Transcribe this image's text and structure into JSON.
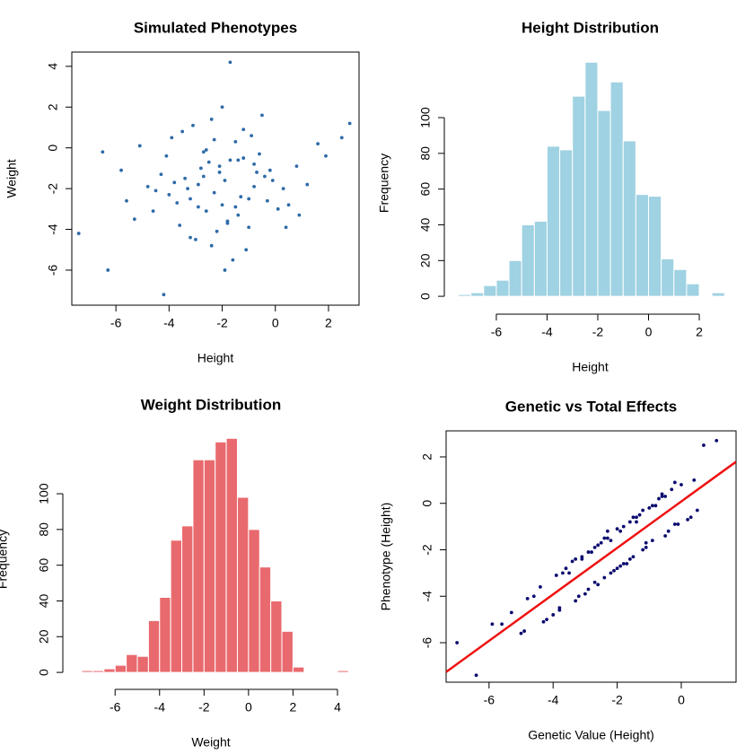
{
  "chart_data": [
    {
      "type": "scatter",
      "title": "Simulated Phenotypes",
      "x_label": "Height",
      "y_label": "Weight",
      "color": "#2f6aa8",
      "x": [
        -2.1,
        -1.5,
        -3.2,
        -0.8,
        -2.6,
        -1.9,
        -4.1,
        0.3,
        -2.8,
        -1.2,
        -3.6,
        -0.4,
        -2.3,
        -5.1,
        -1.7,
        1.2,
        -3.0,
        -2.0,
        -0.9,
        -4.5,
        -1.4,
        -2.7,
        0.8,
        -3.4,
        -1.1,
        -2.4,
        -5.6,
        -0.2,
        -1.8,
        -3.9,
        -2.9,
        -0.6,
        1.6,
        -2.2,
        -4.8,
        -1.3,
        -3.1,
        0.1,
        -2.5,
        -1.6,
        -6.5,
        -0.7,
        -3.7,
        -2.0,
        -1.0,
        -4.3,
        0.5,
        -2.6,
        -1.9,
        -3.3,
        2.8,
        -7.4,
        -1.7,
        -4.2,
        -6.3,
        2.5,
        -0.3,
        -2.4,
        -3.8,
        -1.2,
        -5.3,
        -0.5,
        -2.9,
        0.9,
        -1.5,
        -4.0,
        -2.1,
        -3.5,
        -0.1,
        -1.8,
        1.9,
        -2.7,
        -4.6,
        -1.0,
        -3.2,
        -0.8,
        -2.3,
        -5.8,
        0.4,
        -1.4
      ],
      "values": [
        -1.2,
        0.3,
        -2.5,
        -0.8,
        -3.1,
        -1.6,
        -0.4,
        -2.0,
        -1.0,
        0.9,
        -3.8,
        -1.4,
        -2.2,
        0.1,
        -0.6,
        -1.8,
        -4.5,
        -2.8,
        0.6,
        -2.1,
        -3.3,
        -0.2,
        -0.9,
        -1.5,
        -5.0,
        1.4,
        -2.6,
        -1.1,
        -3.6,
        0.5,
        -2.9,
        -0.3,
        0.2,
        -4.1,
        -1.9,
        -2.4,
        1.1,
        -3.0,
        -0.7,
        -5.5,
        -0.2,
        -1.2,
        -2.7,
        2.0,
        -3.9,
        -1.3,
        -2.8,
        -0.1,
        -6.0,
        -2.0,
        1.2,
        -4.2,
        4.2,
        -7.2,
        -6.0,
        0.5,
        -2.6,
        -4.8,
        -1.7,
        -0.5,
        -3.5,
        1.6,
        -1.8,
        -3.3,
        -2.9,
        -2.3,
        -0.9,
        0.8,
        -1.6,
        -3.7,
        -0.4,
        -1.4,
        -3.1,
        -2.5,
        -4.4,
        -1.9,
        0.4,
        -1.1,
        -3.9,
        -0.6
      ],
      "xlim": [
        -7.66,
        3.15
      ],
      "ylim": [
        -7.72,
        4.7
      ],
      "xticks": [
        -6,
        -4,
        -2,
        0,
        2
      ],
      "yticks": [
        -6,
        -4,
        -2,
        0,
        2,
        4
      ]
    },
    {
      "type": "histogram",
      "title": "Height Distribution",
      "x_label": "Height",
      "y_label": "Frequency",
      "color": "#9fd2e2",
      "bins": [
        -7.5,
        -7,
        -6.5,
        -6,
        -5.5,
        -5,
        -4.5,
        -4,
        -3.5,
        -3,
        -2.5,
        -2,
        -1.5,
        -1,
        -0.5,
        0,
        0.5,
        1,
        1.5,
        2,
        2.5,
        3
      ],
      "values": [
        1,
        2,
        6,
        9,
        20,
        40,
        42,
        84,
        82,
        112,
        131,
        104,
        120,
        87,
        57,
        56,
        21,
        15,
        7,
        0,
        2
      ],
      "xlim": [
        -8.05,
        3.45
      ],
      "ylim": [
        -10,
        136.7
      ],
      "xticks": [
        -6,
        -4,
        -2,
        0,
        2
      ],
      "yticks": [
        0,
        20,
        40,
        60,
        80,
        100
      ]
    },
    {
      "type": "histogram",
      "title": "Weight Distribution",
      "x_label": "Weight",
      "y_label": "Frequency",
      "color": "#e96a6e",
      "bins": [
        -7.5,
        -7,
        -6.5,
        -6,
        -5.5,
        -5,
        -4.5,
        -4,
        -3.5,
        -3,
        -2.5,
        -2,
        -1.5,
        -1,
        -0.5,
        0,
        0.5,
        1,
        1.5,
        2,
        2.5,
        3,
        3.5,
        4,
        4.5
      ],
      "values": [
        1,
        1,
        2,
        4,
        10,
        9,
        29,
        42,
        74,
        82,
        119,
        119,
        129,
        131,
        98,
        80,
        59,
        40,
        23,
        3,
        0,
        0,
        0,
        1
      ],
      "xlim": [
        -8.35,
        4.97
      ],
      "ylim": [
        -9.5,
        136.2
      ],
      "xticks": [
        -6,
        -4,
        -2,
        0,
        2,
        4
      ],
      "yticks": [
        0,
        20,
        40,
        60,
        80,
        100
      ]
    },
    {
      "type": "scatter",
      "title": "Genetic vs Total Effects",
      "x_label": "Genetic Value (Height)",
      "y_label": "Phenotype (Height)",
      "color": "#0a0a6e",
      "x": [
        -2.2,
        -1.5,
        -3.1,
        -0.8,
        -2.6,
        -1.9,
        -3.8,
        -0.2,
        -2.8,
        -1.2,
        -3.5,
        -0.5,
        -2.3,
        -4.6,
        -1.7,
        0.4,
        -3.0,
        -2.0,
        -1.0,
        -4.2,
        -1.4,
        -2.7,
        -0.1,
        -3.4,
        -1.1,
        -2.4,
        -5.0,
        -0.6,
        -1.8,
        -3.9,
        -2.9,
        -0.7,
        0.2,
        -2.1,
        -4.4,
        -1.3,
        -3.2,
        -0.3,
        -2.5,
        -1.6,
        -5.6,
        -0.9,
        -3.6,
        -2.0,
        -1.5,
        -4.0,
        0.0,
        -2.6,
        -1.9,
        -3.3,
        1.1,
        -7.0,
        -6.4,
        0.7,
        -5.9,
        -4.8,
        -0.4,
        -2.4,
        -3.7,
        -1.2,
        -4.9,
        -0.6,
        -2.9,
        0.5,
        -1.6,
        -3.8,
        -2.2,
        -3.3,
        -0.2,
        -1.8,
        -0.5,
        -2.7,
        -4.3,
        -1.1,
        -3.1,
        -0.9,
        -2.3,
        -5.3,
        0.3,
        -1.4
      ],
      "values": [
        -1.6,
        -2.3,
        -2.4,
        -0.1,
        -3.5,
        -1.2,
        -4.6,
        0.9,
        -2.1,
        -2.0,
        -3.0,
        -1.4,
        -1.2,
        -4.0,
        -2.6,
        1.0,
        -3.9,
        -1.1,
        -0.2,
        -5.0,
        -0.8,
        -3.4,
        -0.9,
        -2.5,
        -1.7,
        -1.5,
        -5.6,
        0.3,
        -2.6,
        -3.1,
        -3.7,
        0.2,
        -0.7,
        -2.9,
        -3.6,
        -0.5,
        -4.0,
        0.6,
        -1.7,
        -2.4,
        -5.2,
        -1.6,
        -2.8,
        -2.8,
        -0.6,
        -4.8,
        0.8,
        -1.8,
        -2.7,
        -4.2,
        2.7,
        -6.0,
        -7.4,
        2.5,
        -5.2,
        -4.1,
        -1.2,
        -3.2,
        -3.0,
        -0.3,
        -5.5,
        0.4,
        -2.1,
        -0.3,
        -0.8,
        -4.5,
        -3.0,
        -2.4,
        -0.9,
        -1.0,
        0.3,
        -1.9,
        -5.1,
        -1.9,
        -2.3,
        -0.1,
        -1.5,
        -4.7,
        -0.6,
        -0.6
      ],
      "fit_line": {
        "intercept": 0.08,
        "slope": 1.0,
        "color": "#ee1111"
      },
      "xlim": [
        -7.34,
        1.71
      ],
      "ylim": [
        -7.7,
        3.12
      ],
      "xticks": [
        -6,
        -4,
        -2,
        0
      ],
      "yticks": [
        -6,
        -4,
        -2,
        0,
        2
      ]
    }
  ]
}
